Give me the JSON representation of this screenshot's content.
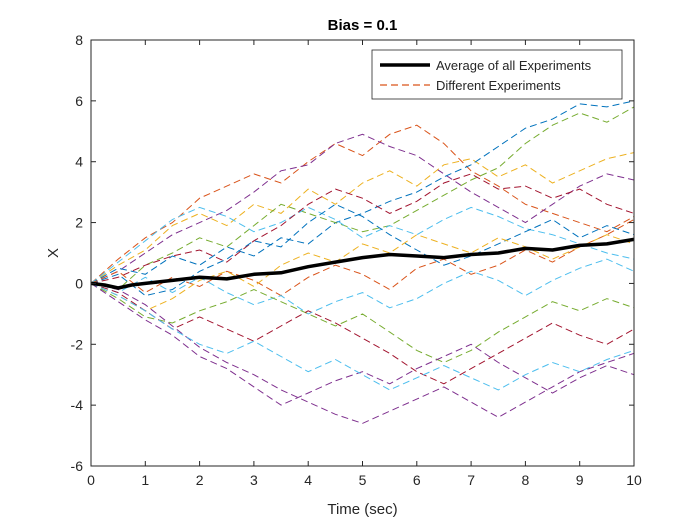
{
  "chart_data": {
    "type": "line",
    "title": "Bias = 0.1",
    "xlabel": "Time (sec)",
    "ylabel": "X",
    "xlim": [
      0,
      10
    ],
    "ylim": [
      -6,
      8
    ],
    "xticks": [
      0,
      1,
      2,
      3,
      4,
      5,
      6,
      7,
      8,
      9,
      10
    ],
    "yticks": [
      -6,
      -4,
      -2,
      0,
      2,
      4,
      6,
      8
    ],
    "grid": false,
    "legend": {
      "placement": "top-right",
      "entries": [
        "Average of all Experiments",
        "Different Experiments"
      ]
    },
    "average": {
      "name": "Average of all Experiments",
      "color": "#000000",
      "x": [
        0,
        0.25,
        0.5,
        0.75,
        1,
        1.5,
        2,
        2.5,
        3,
        3.5,
        4,
        4.5,
        5,
        5.5,
        6,
        6.5,
        7,
        7.5,
        8,
        8.5,
        9,
        9.5,
        10
      ],
      "y": [
        0,
        -0.05,
        -0.15,
        -0.05,
        0,
        0.1,
        0.2,
        0.15,
        0.3,
        0.35,
        0.55,
        0.7,
        0.85,
        0.95,
        0.9,
        0.85,
        0.95,
        1.0,
        1.15,
        1.1,
        1.25,
        1.3,
        1.45
      ]
    },
    "experiments_legend_name": "Different Experiments",
    "experiment_x": [
      0,
      0.5,
      1,
      1.5,
      2,
      2.5,
      3,
      3.5,
      4,
      4.5,
      5,
      5.5,
      6,
      6.5,
      7,
      7.5,
      8,
      8.5,
      9,
      9.5,
      10
    ],
    "experiments": [
      {
        "color": "#D95319",
        "y": [
          0,
          0.8,
          1.5,
          2.0,
          2.8,
          3.2,
          3.6,
          3.3,
          4.0,
          4.6,
          4.2,
          4.9,
          5.2,
          4.6,
          3.7,
          3.2,
          2.6,
          2.3,
          2.0,
          1.7,
          2.2
        ]
      },
      {
        "color": "#7E2F8E",
        "y": [
          0,
          0.4,
          1.0,
          1.6,
          2.0,
          2.4,
          3.0,
          3.7,
          3.9,
          4.6,
          4.9,
          4.5,
          4.2,
          3.6,
          3.0,
          2.5,
          2.0,
          2.6,
          3.2,
          3.6,
          3.4
        ]
      },
      {
        "color": "#EDB120",
        "y": [
          0,
          0.6,
          1.1,
          1.9,
          2.3,
          1.9,
          2.6,
          2.3,
          3.1,
          2.6,
          3.3,
          3.7,
          3.2,
          3.9,
          4.1,
          3.5,
          3.9,
          3.3,
          3.7,
          4.1,
          4.3
        ]
      },
      {
        "color": "#0072BD",
        "y": [
          0,
          0.5,
          0.3,
          0.9,
          0.6,
          1.2,
          0.9,
          1.5,
          1.3,
          2.0,
          2.3,
          2.7,
          3.0,
          3.5,
          3.9,
          4.5,
          5.1,
          5.4,
          5.9,
          5.8,
          6.0
        ]
      },
      {
        "color": "#77AC30",
        "y": [
          0,
          -0.2,
          0.6,
          1.0,
          1.5,
          1.2,
          1.9,
          2.6,
          2.3,
          2.0,
          1.7,
          1.9,
          2.4,
          2.9,
          3.4,
          3.8,
          4.6,
          5.2,
          5.6,
          5.3,
          5.8
        ]
      },
      {
        "color": "#4DBEEE",
        "y": [
          0,
          0.7,
          1.4,
          2.1,
          2.5,
          2.2,
          1.7,
          2.0,
          2.5,
          2.1,
          1.5,
          1.9,
          1.6,
          2.1,
          2.5,
          2.2,
          1.8,
          1.6,
          1.3,
          1.0,
          0.8
        ]
      },
      {
        "color": "#A2142F",
        "y": [
          0,
          0.2,
          0.6,
          0.9,
          1.1,
          0.7,
          1.4,
          1.9,
          2.6,
          3.1,
          2.8,
          2.3,
          2.7,
          3.3,
          3.6,
          3.1,
          3.2,
          2.8,
          3.1,
          2.6,
          2.3
        ]
      },
      {
        "color": "#0072BD",
        "y": [
          0,
          0.3,
          -0.4,
          -0.2,
          0.4,
          0.8,
          1.4,
          1.2,
          2.0,
          2.6,
          2.2,
          1.6,
          1.1,
          0.6,
          0.9,
          1.3,
          1.7,
          2.1,
          1.5,
          1.9,
          1.6
        ]
      },
      {
        "color": "#D95319",
        "y": [
          0,
          0.4,
          -0.3,
          0.2,
          -0.1,
          0.4,
          0.1,
          -0.4,
          0.2,
          0.6,
          0.3,
          -0.2,
          0.5,
          0.8,
          0.3,
          0.6,
          1.1,
          0.7,
          1.2,
          1.6,
          2.1
        ]
      },
      {
        "color": "#EDB120",
        "y": [
          0,
          -0.4,
          -0.9,
          -0.5,
          0.1,
          0.4,
          -0.1,
          0.6,
          1.0,
          0.7,
          1.3,
          1.0,
          1.6,
          1.3,
          1.0,
          1.5,
          1.2,
          0.8,
          1.2,
          1.6,
          1.3
        ]
      },
      {
        "color": "#4DBEEE",
        "y": [
          0,
          -0.3,
          0.2,
          -0.3,
          0.2,
          -0.3,
          -0.7,
          -0.4,
          -1.0,
          -0.6,
          -0.3,
          -0.8,
          -0.5,
          0.0,
          0.4,
          0.1,
          -0.4,
          0.1,
          0.5,
          0.8,
          0.4
        ]
      },
      {
        "color": "#77AC30",
        "y": [
          0,
          -0.5,
          -1.1,
          -1.3,
          -0.9,
          -0.6,
          -0.2,
          -0.6,
          -1.0,
          -1.4,
          -1.0,
          -1.6,
          -2.2,
          -2.6,
          -2.2,
          -1.6,
          -1.1,
          -0.6,
          -0.9,
          -0.5,
          -0.8
        ]
      },
      {
        "color": "#A2142F",
        "y": [
          0,
          -0.3,
          -0.9,
          -1.5,
          -1.1,
          -1.5,
          -1.9,
          -1.4,
          -0.9,
          -1.3,
          -1.8,
          -2.3,
          -2.9,
          -3.3,
          -2.8,
          -2.3,
          -1.8,
          -1.3,
          -1.7,
          -2.0,
          -1.5
        ]
      },
      {
        "color": "#7E2F8E",
        "y": [
          0,
          -0.2,
          -0.7,
          -1.4,
          -2.1,
          -2.6,
          -3.0,
          -3.5,
          -3.9,
          -4.3,
          -4.6,
          -4.2,
          -3.8,
          -3.4,
          -3.9,
          -4.4,
          -3.9,
          -3.4,
          -2.9,
          -2.6,
          -2.3
        ]
      },
      {
        "color": "#7E2F8E",
        "y": [
          0,
          -0.6,
          -1.2,
          -1.7,
          -2.4,
          -2.8,
          -3.4,
          -4.0,
          -3.6,
          -3.2,
          -2.9,
          -3.3,
          -2.8,
          -2.4,
          -2.0,
          -2.6,
          -3.1,
          -3.6,
          -3.1,
          -2.7,
          -3.0
        ]
      },
      {
        "color": "#4DBEEE",
        "y": [
          0,
          -0.4,
          -0.9,
          -1.5,
          -2.0,
          -2.3,
          -1.9,
          -2.4,
          -2.9,
          -2.5,
          -3.0,
          -3.5,
          -3.1,
          -2.7,
          -3.1,
          -3.5,
          -3.0,
          -2.6,
          -2.9,
          -2.5,
          -2.2
        ]
      }
    ]
  }
}
